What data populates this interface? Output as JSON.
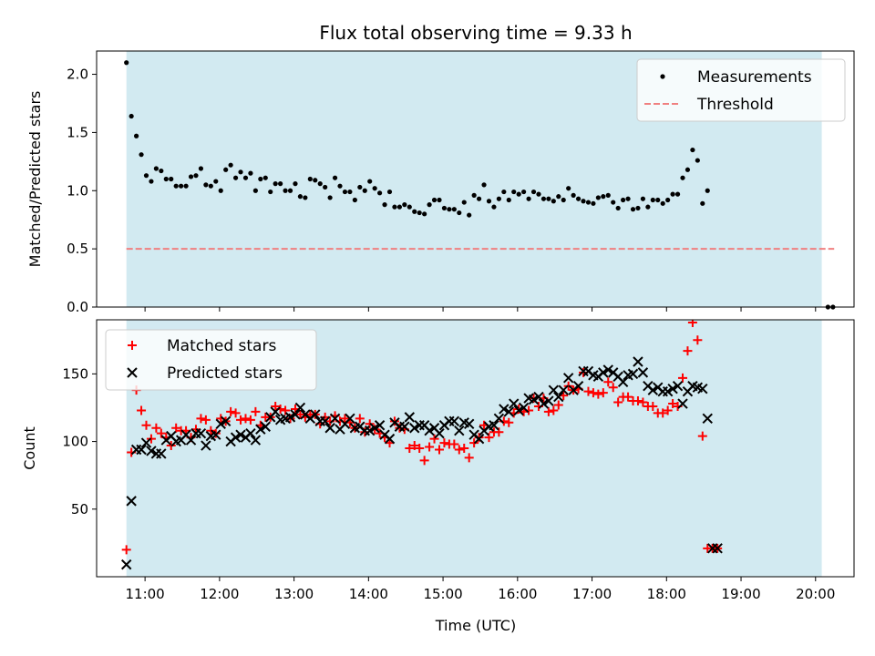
{
  "chart_data": {
    "title": "Flux total observing time = 9.33 h",
    "xlabel": "Time (UTC)",
    "colors": {
      "observing_band": "#add8e6",
      "measurements": "#000000",
      "threshold": "#f08080",
      "matched": "#ff0000",
      "predicted": "#000000"
    },
    "x_ticks": [
      "11:00",
      "12:00",
      "13:00",
      "14:00",
      "15:00",
      "16:00",
      "17:00",
      "18:00",
      "19:00",
      "20:00"
    ],
    "observing_window": [
      "10:45",
      "20:05"
    ],
    "charts": [
      {
        "type": "scatter",
        "ylabel": "Matched/Predicted stars",
        "ylim": [
          0,
          2.2
        ],
        "yticks": [
          0.0,
          0.5,
          1.0,
          1.5,
          2.0
        ],
        "legend": "top-right",
        "series": [
          {
            "name": "Measurements",
            "marker": "dot",
            "x_start": "10:45",
            "x_step_min": 4,
            "values": [
              2.1,
              1.64,
              1.47,
              1.31,
              1.13,
              1.08,
              1.19,
              1.17,
              1.1,
              1.1,
              1.04,
              1.04,
              1.04,
              1.12,
              1.13,
              1.19,
              1.05,
              1.04,
              1.08,
              1.0,
              1.18,
              1.22,
              1.11,
              1.16,
              1.11,
              1.15,
              1.0,
              1.1,
              1.11,
              0.99,
              1.06,
              1.06,
              1.0,
              1.0,
              1.06,
              0.95,
              0.94,
              1.1,
              1.09,
              1.06,
              1.03,
              0.94,
              1.11,
              1.04,
              0.99,
              0.99,
              0.92,
              1.03,
              1.0,
              1.08,
              1.02,
              0.98,
              0.88,
              0.99,
              0.86,
              0.86,
              0.88,
              0.86,
              0.82,
              0.81,
              0.8,
              0.88,
              0.92,
              0.92,
              0.85,
              0.84,
              0.84,
              0.81,
              0.9,
              0.79,
              0.96,
              0.93,
              1.05,
              0.91,
              0.86,
              0.93,
              0.99,
              0.92,
              0.99,
              0.97,
              0.99,
              0.93,
              0.99,
              0.97,
              0.93,
              0.93,
              0.91,
              0.95,
              0.92,
              1.02,
              0.96,
              0.93,
              0.91,
              0.9,
              0.89,
              0.94,
              0.95,
              0.96,
              0.9,
              0.85,
              0.92,
              0.93,
              0.84,
              0.85,
              0.93,
              0.86,
              0.92,
              0.92,
              0.89,
              0.92,
              0.97,
              0.97,
              1.11,
              1.18,
              1.35,
              1.26,
              0.89,
              1.0
            ]
          },
          {
            "name": "Threshold",
            "style": "dashed",
            "x_range": [
              "10:45",
              "20:15"
            ],
            "value": 0.5
          },
          {
            "name": "",
            "marker": "dot",
            "points": [
              [
                "20:10",
                0.0
              ],
              [
                "20:14",
                0.0
              ]
            ]
          }
        ]
      },
      {
        "type": "scatter",
        "ylabel": "Count",
        "ylim": [
          0,
          190
        ],
        "yticks": [
          50,
          100,
          150
        ],
        "legend": "top-left",
        "series": [
          {
            "name": "Matched stars",
            "marker": "plus",
            "x_start": "10:45",
            "x_step_min": 4,
            "values": [
              20,
              92,
              138,
              123,
              112,
              102,
              110,
              106,
              103,
              97,
              110,
              108,
              108,
              103,
              109,
              117,
              116,
              108,
              106,
              117,
              115,
              122,
              121,
              116,
              117,
              116,
              122,
              112,
              118,
              118,
              126,
              124,
              123,
              117,
              124,
              120,
              118,
              120,
              120,
              113,
              118,
              115,
              119,
              115,
              117,
              114,
              110,
              117,
              107,
              113,
              109,
              106,
              103,
              99,
              115,
              110,
              109,
              95,
              97,
              95,
              86,
              96,
              102,
              94,
              99,
              98,
              98,
              94,
              95,
              88,
              99,
              103,
              112,
              103,
              107,
              107,
              115,
              114,
              121,
              124,
              122,
              123,
              132,
              126,
              132,
              122,
              123,
              127,
              134,
              141,
              138,
              139,
              151,
              137,
              136,
              135,
              136,
              144,
              140,
              129,
              133,
              133,
              130,
              130,
              129,
              126,
              126,
              121,
              121,
              123,
              128,
              126,
              147,
              167,
              188,
              175,
              104,
              21,
              21,
              21
            ]
          },
          {
            "name": "Predicted stars",
            "marker": "x",
            "x_start": "10:45",
            "x_step_min": 4,
            "values": [
              9,
              56,
              94,
              94,
              99,
              93,
              91,
              91,
              101,
              104,
              100,
              101,
              105,
              101,
              106,
              106,
              97,
              104,
              105,
              113,
              115,
              100,
              103,
              105,
              103,
              106,
              101,
              109,
              111,
              118,
              122,
              116,
              117,
              118,
              120,
              125,
              120,
              117,
              120,
              115,
              115,
              110,
              117,
              109,
              113,
              117,
              110,
              111,
              108,
              108,
              110,
              112,
              105,
              102,
              114,
              111,
              111,
              118,
              110,
              112,
              112,
              108,
              110,
              106,
              112,
              115,
              115,
              108,
              114,
              113,
              105,
              102,
              108,
              111,
              112,
              117,
              124,
              122,
              128,
              123,
              125,
              132,
              131,
              133,
              128,
              130,
              138,
              133,
              138,
              147,
              138,
              141,
              152,
              152,
              149,
              148,
              151,
              153,
              151,
              148,
              144,
              149,
              150,
              159,
              151,
              141,
              138,
              140,
              137,
              137,
              139,
              141,
              128,
              137,
              141,
              140,
              139,
              117,
              21,
              21
            ]
          }
        ]
      }
    ],
    "legend_labels": [
      "Measurements",
      "Threshold",
      "Matched stars",
      "Predicted stars"
    ]
  }
}
